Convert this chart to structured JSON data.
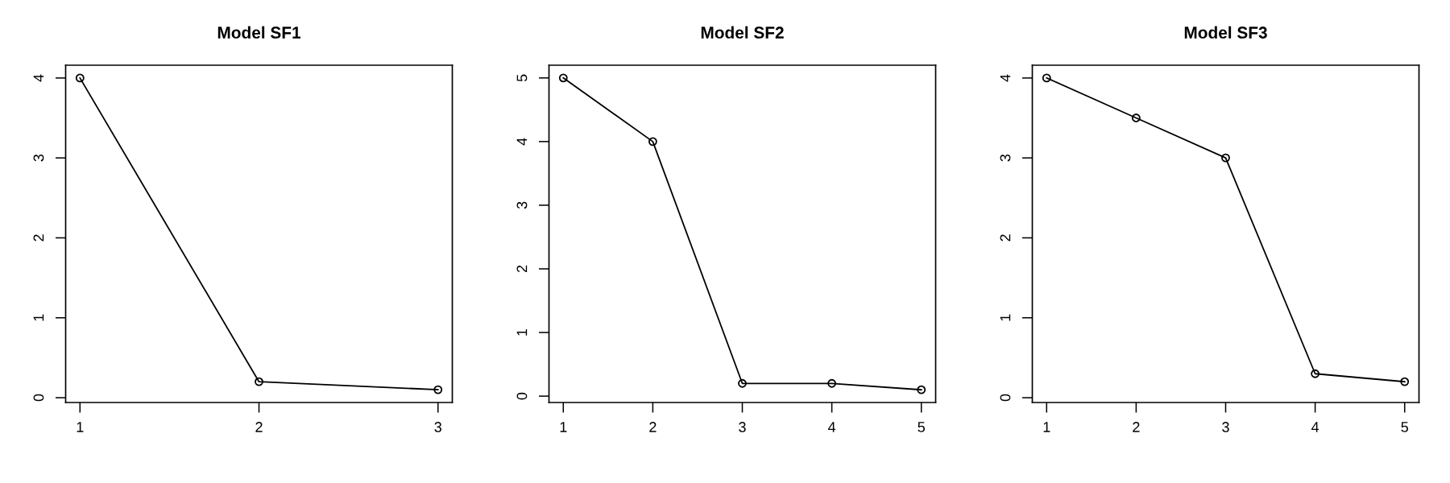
{
  "chart_data": [
    {
      "type": "line",
      "title": "Model SF1",
      "x": [
        1,
        2,
        3
      ],
      "series": [
        {
          "color": "#000000",
          "values": [
            4,
            0.2,
            0.1
          ]
        }
      ],
      "xlim": [
        0.92,
        3.08
      ],
      "ylim": [
        -0.06,
        4.16
      ],
      "xticks": [
        1,
        2,
        3
      ],
      "yticks": [
        0,
        1,
        2,
        3,
        4
      ],
      "marker": "circle",
      "line_style": "solid"
    },
    {
      "type": "line",
      "title": "Model SF2",
      "x": [
        1,
        2,
        3,
        4,
        5
      ],
      "series": [
        {
          "color": "#000000",
          "values": [
            5,
            4,
            0.2,
            0.2,
            0.1
          ]
        }
      ],
      "xlim": [
        0.84,
        5.16
      ],
      "ylim": [
        -0.1,
        5.2
      ],
      "xticks": [
        1,
        2,
        3,
        4,
        5
      ],
      "yticks": [
        0,
        1,
        2,
        3,
        4,
        5
      ],
      "marker": "circle",
      "line_style": "solid"
    },
    {
      "type": "line",
      "title": "Model SF3",
      "x": [
        1,
        2,
        3,
        4,
        5
      ],
      "series": [
        {
          "color": "#000000",
          "values": [
            4,
            3.5,
            3,
            0.3,
            0.2
          ]
        }
      ],
      "xlim": [
        0.84,
        5.16
      ],
      "ylim": [
        -0.06,
        4.16
      ],
      "xticks": [
        1,
        2,
        3,
        4,
        5
      ],
      "yticks": [
        0,
        1,
        2,
        3,
        4
      ],
      "marker": "circle",
      "line_style": "solid"
    }
  ]
}
